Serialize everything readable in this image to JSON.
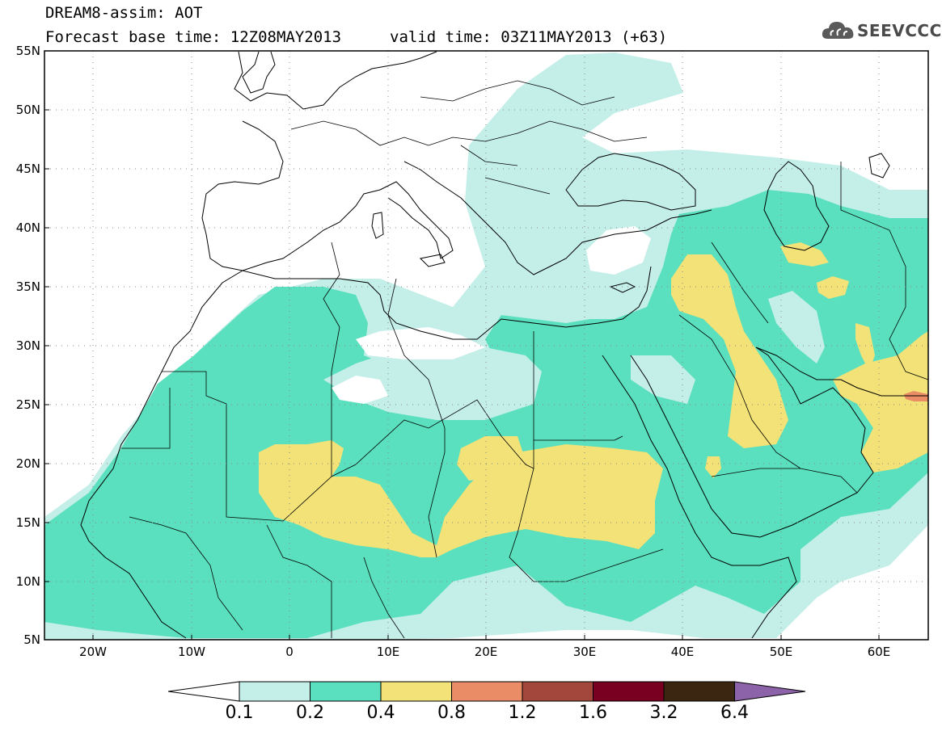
{
  "header": {
    "line1": "DREAM8-assim: AOT",
    "line2": "Forecast base time: 12Z08MAY2013",
    "valid": "valid time: 03Z11MAY2013 (+63)"
  },
  "logo": {
    "text": "SEEVCCC",
    "icon": "cloud-icon"
  },
  "map": {
    "lon_range": [
      -25,
      65
    ],
    "lat_range": [
      5,
      55
    ],
    "lat_labels": [
      "55N",
      "50N",
      "45N",
      "40N",
      "35N",
      "30N",
      "25N",
      "20N",
      "15N",
      "10N",
      "5N"
    ],
    "lon_labels": [
      "20W",
      "10W",
      "0",
      "10E",
      "20E",
      "30E",
      "40E",
      "50E",
      "60E"
    ],
    "grid": "dotted"
  },
  "colorbar": {
    "labels": [
      "0.1",
      "0.2",
      "0.4",
      "0.8",
      "1.2",
      "1.6",
      "3.2",
      "6.4"
    ],
    "colors": [
      "#ffffff",
      "#c4eee8",
      "#5ae0be",
      "#f2e277",
      "#ea8d66",
      "#a3473d",
      "#7a0022",
      "#3b2612",
      "#8c62a8"
    ]
  },
  "colors": {
    "level_0_1": "#c4eee8",
    "level_0_2": "#5ae0be",
    "level_0_4": "#f2e277",
    "level_0_8": "#ea8d66"
  }
}
